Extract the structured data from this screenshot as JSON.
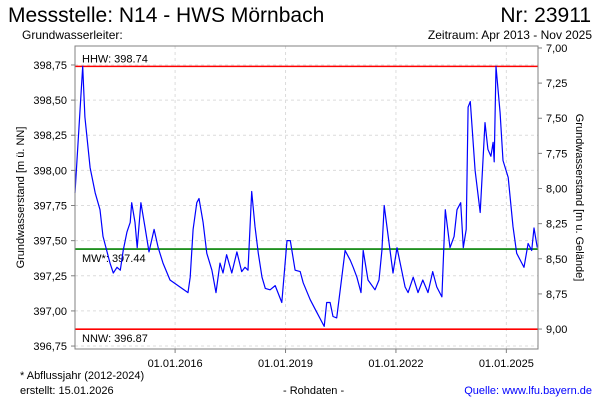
{
  "header": {
    "title": "Messstelle: N14 - HWS Mörnbach",
    "number": "Nr: 23911",
    "aquifer": "Grundwasserleiter:",
    "period": "Zeitraum: Apr 2013 - Nov 2025"
  },
  "footer": {
    "note": "* Abflussjahr (2012-2024)",
    "created": "erstellt:  15.01.2026",
    "datatype": "- Rohdaten -",
    "source": "Quelle: www.lfu.bayern.de",
    "source_color": "#0000ff"
  },
  "chart_data": {
    "type": "line",
    "title": "Messstelle: N14 - HWS Mörnbach",
    "ylabel": "Grundwasserstand [m ü. NN]",
    "y2label": "Grundwasserstand [m u. Gelände]",
    "xlim": [
      2013.28,
      2025.86
    ],
    "ylim": [
      396.729,
      398.885
    ],
    "ground_level": 405.871,
    "grid": true,
    "xticks": [
      {
        "value": 2016,
        "label": "01.01.2016"
      },
      {
        "value": 2019,
        "label": "01.01.2019"
      },
      {
        "value": 2022,
        "label": "01.01.2022"
      },
      {
        "value": 2025,
        "label": "01.01.2025"
      }
    ],
    "yticks": [
      {
        "value": 398.75,
        "label": "398,75"
      },
      {
        "value": 398.5,
        "label": "398,50"
      },
      {
        "value": 398.25,
        "label": "398,25"
      },
      {
        "value": 398.0,
        "label": "398,00"
      },
      {
        "value": 397.75,
        "label": "397,75"
      },
      {
        "value": 397.5,
        "label": "397,50"
      },
      {
        "value": 397.25,
        "label": "397,25"
      },
      {
        "value": 397.0,
        "label": "397,00"
      },
      {
        "value": 396.75,
        "label": "396,75"
      }
    ],
    "y2ticks": [
      {
        "value": 7.0,
        "label": "7,00"
      },
      {
        "value": 7.25,
        "label": "7,25"
      },
      {
        "value": 7.5,
        "label": "7,50"
      },
      {
        "value": 7.75,
        "label": "7,75"
      },
      {
        "value": 8.0,
        "label": "8,00"
      },
      {
        "value": 8.25,
        "label": "8,25"
      },
      {
        "value": 8.5,
        "label": "8,50"
      },
      {
        "value": 8.75,
        "label": "8,75"
      },
      {
        "value": 9.0,
        "label": "9,00"
      }
    ],
    "reference_lines": [
      {
        "name": "HHW",
        "value": 398.74,
        "label": "HHW: 398.74",
        "color": "#ff0000",
        "label_pos": "above"
      },
      {
        "name": "MW",
        "value": 397.44,
        "label": "MW*: 397.44",
        "color": "#008000",
        "label_pos": "below"
      },
      {
        "name": "NNW",
        "value": 396.87,
        "label": "NNW: 396.87",
        "color": "#ff0000",
        "label_pos": "below"
      }
    ],
    "series": [
      {
        "name": "Grundwasserstand",
        "color": "#0000ff",
        "points": [
          [
            2013.28,
            397.84
          ],
          [
            2013.49,
            398.74
          ],
          [
            2013.55,
            398.38
          ],
          [
            2013.69,
            398.02
          ],
          [
            2013.83,
            397.84
          ],
          [
            2013.96,
            397.72
          ],
          [
            2014.04,
            397.53
          ],
          [
            2014.14,
            397.43
          ],
          [
            2014.23,
            397.34
          ],
          [
            2014.32,
            397.27
          ],
          [
            2014.42,
            397.31
          ],
          [
            2014.51,
            397.29
          ],
          [
            2014.59,
            397.43
          ],
          [
            2014.69,
            397.56
          ],
          [
            2014.78,
            397.63
          ],
          [
            2014.82,
            397.77
          ],
          [
            2014.91,
            397.63
          ],
          [
            2014.97,
            397.45
          ],
          [
            2015.07,
            397.77
          ],
          [
            2015.18,
            397.6
          ],
          [
            2015.29,
            397.42
          ],
          [
            2015.43,
            397.58
          ],
          [
            2015.54,
            397.45
          ],
          [
            2015.67,
            397.34
          ],
          [
            2015.86,
            397.22
          ],
          [
            2016.35,
            397.13
          ],
          [
            2016.41,
            397.24
          ],
          [
            2016.49,
            397.58
          ],
          [
            2016.59,
            397.77
          ],
          [
            2016.65,
            397.8
          ],
          [
            2016.76,
            397.63
          ],
          [
            2016.86,
            397.41
          ],
          [
            2017.0,
            397.29
          ],
          [
            2017.11,
            397.13
          ],
          [
            2017.22,
            397.34
          ],
          [
            2017.3,
            397.27
          ],
          [
            2017.4,
            397.4
          ],
          [
            2017.54,
            397.27
          ],
          [
            2017.68,
            397.42
          ],
          [
            2017.81,
            397.28
          ],
          [
            2017.9,
            397.31
          ],
          [
            2017.98,
            397.29
          ],
          [
            2018.08,
            397.85
          ],
          [
            2018.17,
            397.6
          ],
          [
            2018.26,
            397.41
          ],
          [
            2018.36,
            397.24
          ],
          [
            2018.45,
            397.16
          ],
          [
            2018.58,
            397.15
          ],
          [
            2018.72,
            397.18
          ],
          [
            2018.9,
            397.06
          ],
          [
            2019.04,
            397.5
          ],
          [
            2019.13,
            397.5
          ],
          [
            2019.26,
            397.29
          ],
          [
            2019.4,
            397.28
          ],
          [
            2019.48,
            397.2
          ],
          [
            2019.67,
            397.08
          ],
          [
            2019.85,
            396.99
          ],
          [
            2020.05,
            396.89
          ],
          [
            2020.12,
            397.06
          ],
          [
            2020.21,
            397.06
          ],
          [
            2020.29,
            396.96
          ],
          [
            2020.39,
            396.95
          ],
          [
            2020.53,
            397.24
          ],
          [
            2020.62,
            397.43
          ],
          [
            2020.76,
            397.36
          ],
          [
            2020.84,
            397.31
          ],
          [
            2020.94,
            397.24
          ],
          [
            2021.05,
            397.13
          ],
          [
            2021.11,
            397.43
          ],
          [
            2021.24,
            397.22
          ],
          [
            2021.43,
            397.15
          ],
          [
            2021.54,
            397.22
          ],
          [
            2021.62,
            397.43
          ],
          [
            2021.68,
            397.75
          ],
          [
            2021.79,
            397.53
          ],
          [
            2021.92,
            397.27
          ],
          [
            2022.03,
            397.45
          ],
          [
            2022.25,
            397.17
          ],
          [
            2022.33,
            397.13
          ],
          [
            2022.47,
            397.24
          ],
          [
            2022.6,
            397.13
          ],
          [
            2022.73,
            397.22
          ],
          [
            2022.87,
            397.13
          ],
          [
            2023.0,
            397.28
          ],
          [
            2023.11,
            397.17
          ],
          [
            2023.25,
            397.1
          ],
          [
            2023.34,
            397.72
          ],
          [
            2023.47,
            397.45
          ],
          [
            2023.58,
            397.53
          ],
          [
            2023.66,
            397.72
          ],
          [
            2023.76,
            397.77
          ],
          [
            2023.83,
            397.45
          ],
          [
            2023.91,
            397.58
          ],
          [
            2023.96,
            398.45
          ],
          [
            2024.02,
            398.49
          ],
          [
            2024.15,
            398.0
          ],
          [
            2024.29,
            397.7
          ],
          [
            2024.42,
            398.34
          ],
          [
            2024.5,
            398.15
          ],
          [
            2024.58,
            398.1
          ],
          [
            2024.64,
            398.2
          ],
          [
            2024.67,
            398.06
          ],
          [
            2024.72,
            398.74
          ],
          [
            2024.83,
            398.41
          ],
          [
            2024.91,
            398.07
          ],
          [
            2025.05,
            397.95
          ],
          [
            2025.18,
            397.6
          ],
          [
            2025.28,
            397.41
          ],
          [
            2025.42,
            397.34
          ],
          [
            2025.48,
            397.31
          ],
          [
            2025.59,
            397.48
          ],
          [
            2025.69,
            397.43
          ],
          [
            2025.75,
            397.59
          ],
          [
            2025.84,
            397.45
          ]
        ]
      }
    ]
  }
}
